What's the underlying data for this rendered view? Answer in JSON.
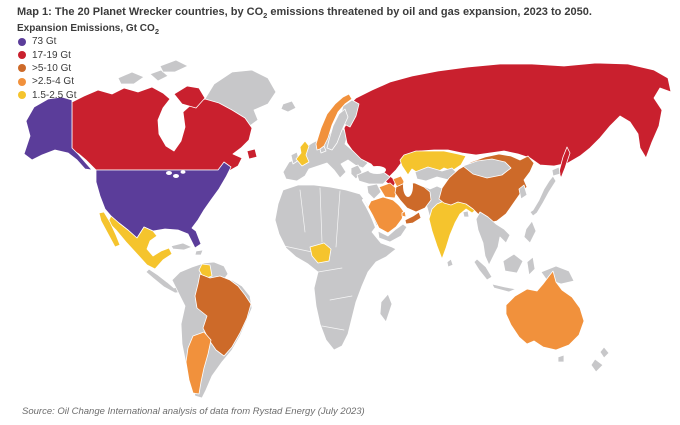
{
  "header": {
    "title_prefix": "Map 1: The 20 Planet Wrecker countries, by CO",
    "title_sub": "2",
    "title_suffix": " emissions threatened by oil and gas expansion, 2023 to 2050."
  },
  "legend": {
    "title_prefix": "Expansion Emissions, Gt CO",
    "title_sub": "2",
    "items": [
      {
        "label": "73 Gt",
        "color": "#5b3d9a"
      },
      {
        "label": "17-19 Gt",
        "color": "#c9202e"
      },
      {
        "label": ">5-10 Gt",
        "color": "#cd6a29"
      },
      {
        "label": ">2.5-4 Gt",
        "color": "#f1913c"
      },
      {
        "label": "1.5-2.5 Gt",
        "color": "#f5c42d"
      }
    ]
  },
  "map": {
    "type": "choropleth-world-map",
    "ocean_color": "#ffffff",
    "land_color": "#c7c7c9",
    "border_color": "#ffffff",
    "countries": [
      {
        "key": "usa",
        "name": "United States",
        "bucket": 0
      },
      {
        "key": "canada",
        "name": "Canada",
        "bucket": 1
      },
      {
        "key": "russia",
        "name": "Russia",
        "bucket": 1
      },
      {
        "key": "iran",
        "name": "Iran",
        "bucket": 2
      },
      {
        "key": "china",
        "name": "China",
        "bucket": 2
      },
      {
        "key": "brazil",
        "name": "Brazil",
        "bucket": 2
      },
      {
        "key": "uae",
        "name": "United Arab Emirates",
        "bucket": 2
      },
      {
        "key": "saudi-arabia",
        "name": "Saudi Arabia",
        "bucket": 3
      },
      {
        "key": "qatar",
        "name": "Qatar",
        "bucket": 3
      },
      {
        "key": "iraq",
        "name": "Iraq",
        "bucket": 3
      },
      {
        "key": "azerbaijan",
        "name": "Azerbaijan",
        "bucket": 3
      },
      {
        "key": "norway",
        "name": "Norway",
        "bucket": 3
      },
      {
        "key": "argentina",
        "name": "Argentina",
        "bucket": 3
      },
      {
        "key": "australia",
        "name": "Australia",
        "bucket": 3
      },
      {
        "key": "mexico",
        "name": "Mexico",
        "bucket": 4
      },
      {
        "key": "guyana",
        "name": "Guyana",
        "bucket": 4
      },
      {
        "key": "uk",
        "name": "United Kingdom",
        "bucket": 4
      },
      {
        "key": "kazakhstan",
        "name": "Kazakhstan",
        "bucket": 4
      },
      {
        "key": "nigeria",
        "name": "Nigeria",
        "bucket": 4
      },
      {
        "key": "india",
        "name": "India",
        "bucket": 4
      }
    ]
  },
  "source": "Source: Oil Change International analysis of data from Rystad Energy (July 2023)"
}
